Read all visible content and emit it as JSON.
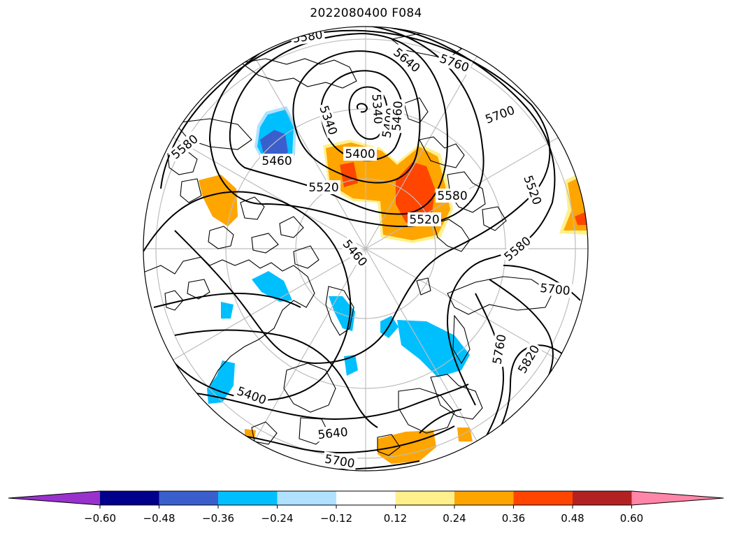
{
  "title": "2022080400 F084",
  "colorbar": {
    "ticks": [
      "−0.60",
      "−0.48",
      "−0.36",
      "−0.24",
      "−0.12",
      "0.12",
      "0.24",
      "0.36",
      "0.48",
      "0.60"
    ],
    "colors": [
      "#9932cc",
      "#00008b",
      "#3a5fcd",
      "#00bfff",
      "#b0e2ff",
      "#ffffff",
      "#fff08c",
      "#ffa500",
      "#ff4500",
      "#b22222",
      "#ff86a8"
    ]
  },
  "contour_labels": [
    {
      "text": "5580"
    },
    {
      "text": "5640"
    },
    {
      "text": "5760"
    },
    {
      "text": "5340"
    },
    {
      "text": "5340"
    },
    {
      "text": "5400"
    },
    {
      "text": "5460"
    },
    {
      "text": "5700"
    },
    {
      "text": "5580"
    },
    {
      "text": "5460"
    },
    {
      "text": "5400"
    },
    {
      "text": "5520"
    },
    {
      "text": "5580"
    },
    {
      "text": "5520"
    },
    {
      "text": "5520"
    },
    {
      "text": "5460"
    },
    {
      "text": "5580"
    },
    {
      "text": "5700"
    },
    {
      "text": "5760"
    },
    {
      "text": "5820"
    },
    {
      "text": "5400"
    },
    {
      "text": "5640"
    },
    {
      "text": "5700"
    }
  ],
  "colors": {
    "contour": "#000000",
    "graticule": "#bdbdbd",
    "coast": "#000000"
  }
}
